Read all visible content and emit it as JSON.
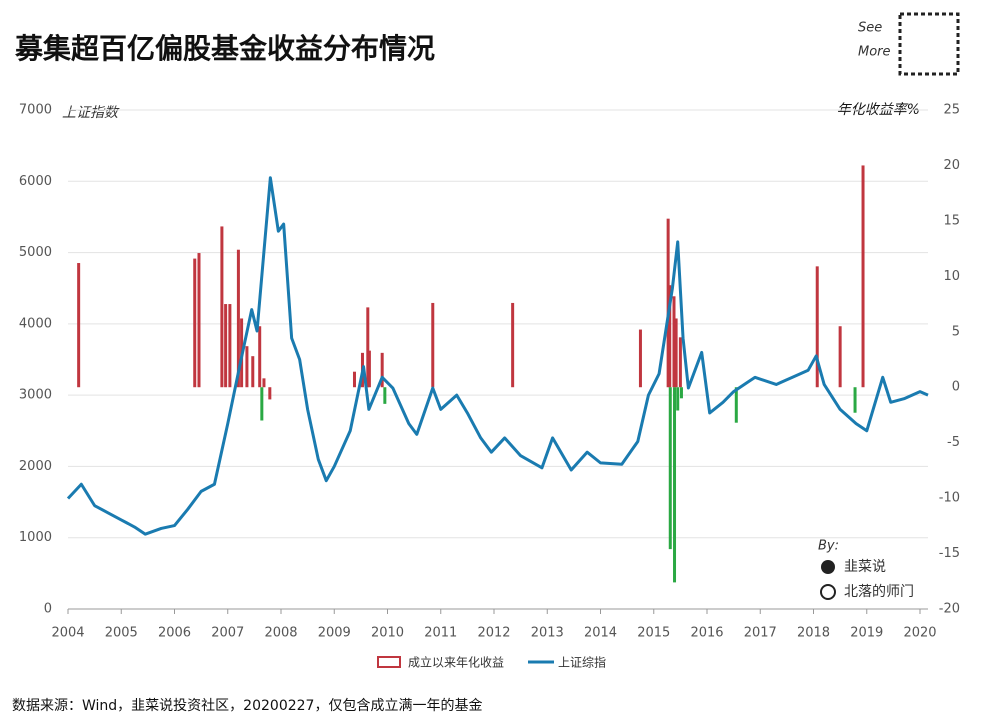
{
  "chart_data": {
    "type": "combo",
    "title": "募集超百亿偏股基金收益分布情况",
    "y_label": "上证指数",
    "y2_label": "年化收益率%",
    "source": "数据来源：Wind，韭菜说投资社区，20200227，仅包含成立满一年的基金",
    "annotations": [
      "See",
      "More",
      "By:",
      "韭菜说",
      "北落的师门"
    ],
    "xlim": [
      2004,
      2020.15
    ],
    "xticks": [
      2004,
      2005,
      2006,
      2007,
      2008,
      2009,
      2010,
      2011,
      2012,
      2013,
      2014,
      2015,
      2016,
      2017,
      2018,
      2019,
      2020
    ],
    "ylim": [
      0,
      7000
    ],
    "yticks": [
      0,
      1000,
      2000,
      3000,
      4000,
      5000,
      6000,
      7000
    ],
    "y2lim": [
      -20,
      25
    ],
    "y2ticks": [
      -20,
      -15,
      -10,
      -5,
      0,
      5,
      10,
      15,
      20,
      25
    ],
    "grid": true,
    "series": [
      {
        "name": "成立以来年化收益",
        "type": "bar",
        "axis": "y2",
        "color": "#c0363f",
        "x": [
          2004.2,
          2006.38,
          2006.46,
          2006.89,
          2006.96,
          2007.04,
          2007.2,
          2007.26,
          2007.36,
          2007.47,
          2007.6,
          2007.64,
          2007.68,
          2007.79,
          2009.38,
          2009.53,
          2009.63,
          2009.66,
          2009.9,
          2009.95,
          2010.85,
          2012.35,
          2014.75,
          2015.27,
          2015.3,
          2015.31,
          2015.38,
          2015.39,
          2015.42,
          2015.45,
          2015.5,
          2015.52,
          2016.55,
          2018.07,
          2018.5,
          2018.78,
          2018.93
        ],
        "values": [
          11.2,
          11.6,
          12.1,
          14.5,
          7.5,
          7.5,
          12.4,
          6.2,
          3.7,
          2.8,
          5.5,
          -3.0,
          0.8,
          -1.1,
          1.4,
          3.1,
          7.2,
          3.3,
          3.1,
          -1.5,
          7.6,
          7.6,
          5.2,
          15.2,
          9.2,
          -14.6,
          8.2,
          -17.6,
          6.2,
          -2.1,
          4.5,
          -1.0,
          -3.2,
          10.9,
          5.5,
          -2.3,
          20.0
        ],
        "colors": [
          "#c0363f",
          "#c0363f",
          "#c0363f",
          "#c0363f",
          "#c0363f",
          "#c0363f",
          "#c0363f",
          "#c0363f",
          "#c0363f",
          "#c0363f",
          "#c0363f",
          "#2aa843",
          "#c0363f",
          "#c0363f",
          "#c0363f",
          "#c0363f",
          "#c0363f",
          "#c0363f",
          "#c0363f",
          "#2aa843",
          "#c0363f",
          "#c0363f",
          "#c0363f",
          "#c0363f",
          "#c0363f",
          "#2aa843",
          "#c0363f",
          "#2aa843",
          "#c0363f",
          "#2aa843",
          "#c0363f",
          "#2aa843",
          "#2aa843",
          "#c0363f",
          "#c0363f",
          "#2aa843",
          "#c0363f"
        ]
      },
      {
        "name": "上证综指",
        "type": "line",
        "axis": "y",
        "color": "#1a7bb0",
        "x": [
          2004.0,
          2004.25,
          2004.5,
          2004.75,
          2005.0,
          2005.25,
          2005.45,
          2005.75,
          2006.0,
          2006.25,
          2006.5,
          2006.75,
          2007.0,
          2007.25,
          2007.45,
          2007.55,
          2007.8,
          2007.95,
          2008.05,
          2008.2,
          2008.35,
          2008.5,
          2008.7,
          2008.85,
          2009.0,
          2009.3,
          2009.55,
          2009.65,
          2009.9,
          2010.1,
          2010.4,
          2010.55,
          2010.85,
          2011.0,
          2011.3,
          2011.5,
          2011.75,
          2011.95,
          2012.2,
          2012.5,
          2012.9,
          2013.1,
          2013.45,
          2013.75,
          2014.0,
          2014.4,
          2014.7,
          2014.9,
          2015.1,
          2015.35,
          2015.45,
          2015.55,
          2015.65,
          2015.9,
          2016.05,
          2016.3,
          2016.5,
          2016.9,
          2017.3,
          2017.6,
          2017.9,
          2018.05,
          2018.2,
          2018.5,
          2018.8,
          2019.0,
          2019.3,
          2019.45,
          2019.7,
          2020.0,
          2020.15
        ],
        "values": [
          1550,
          1750,
          1450,
          1350,
          1250,
          1150,
          1050,
          1130,
          1170,
          1400,
          1650,
          1750,
          2600,
          3500,
          4200,
          3900,
          6050,
          5300,
          5400,
          3800,
          3500,
          2800,
          2100,
          1800,
          2000,
          2500,
          3400,
          2800,
          3250,
          3100,
          2600,
          2450,
          3100,
          2800,
          3000,
          2750,
          2400,
          2200,
          2400,
          2150,
          1980,
          2400,
          1950,
          2200,
          2050,
          2030,
          2350,
          3000,
          3300,
          4500,
          5150,
          3800,
          3100,
          3600,
          2750,
          2900,
          3050,
          3250,
          3150,
          3250,
          3350,
          3550,
          3150,
          2800,
          2600,
          2500,
          3250,
          2900,
          2950,
          3050,
          3000
        ]
      }
    ]
  }
}
